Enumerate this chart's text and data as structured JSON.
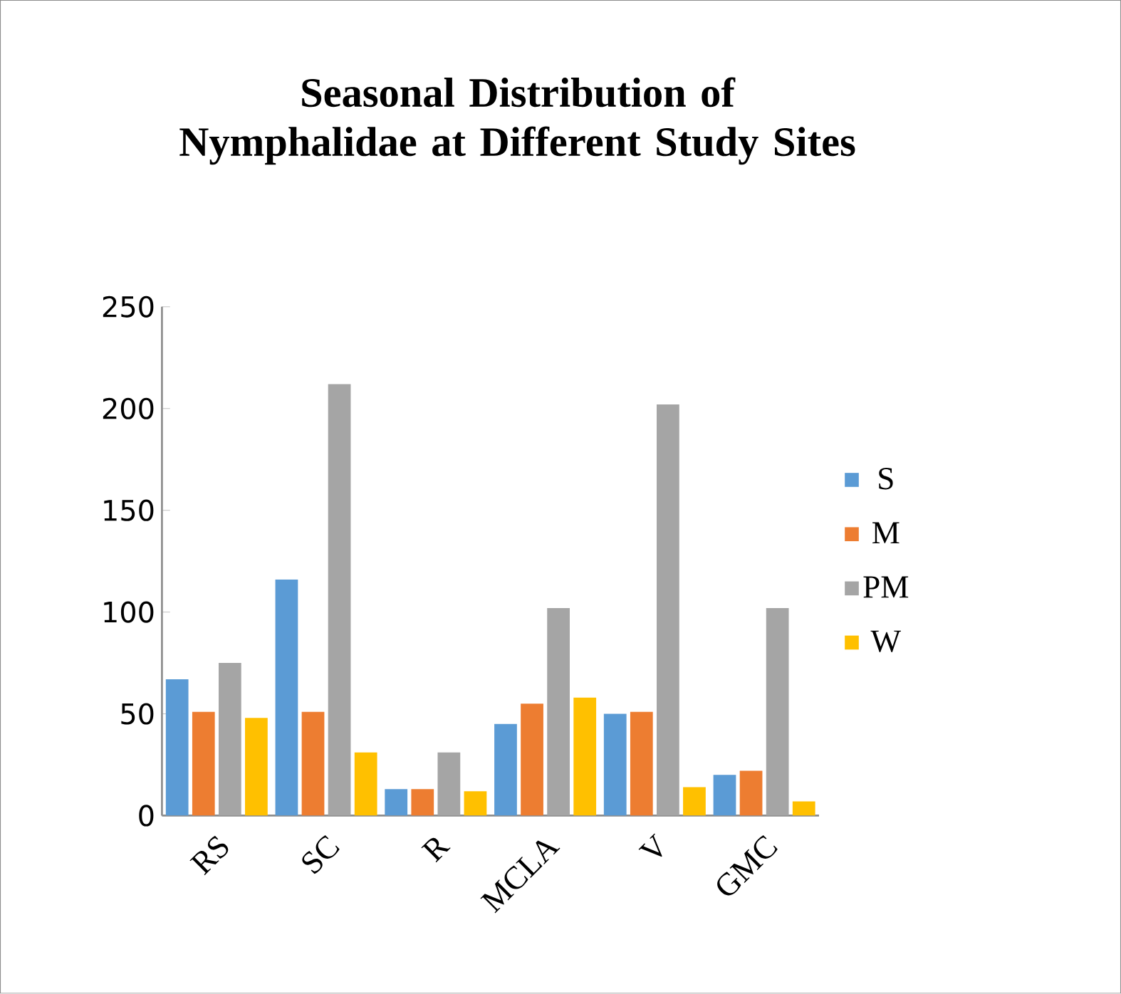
{
  "chart_data": {
    "type": "bar",
    "title": "Seasonal Distribution of Nymphalidae at Different Study Sites",
    "categories": [
      "RS",
      "SC",
      "R",
      "MCLA",
      "V",
      "GMC"
    ],
    "series": [
      {
        "name": "S",
        "color": "#5b9bd5",
        "values": [
          67,
          116,
          13,
          45,
          50,
          20
        ]
      },
      {
        "name": "M",
        "color": "#ed7d31",
        "values": [
          51,
          51,
          13,
          55,
          51,
          22
        ]
      },
      {
        "name": "PM",
        "color": "#a5a5a5",
        "values": [
          75,
          212,
          31,
          102,
          202,
          102
        ]
      },
      {
        "name": "W",
        "color": "#ffc000",
        "values": [
          48,
          31,
          12,
          58,
          14,
          7
        ]
      }
    ],
    "ylim": [
      0,
      250
    ],
    "yticks": [
      0,
      50,
      100,
      150,
      200,
      250
    ],
    "grid": false,
    "legend": "right"
  }
}
